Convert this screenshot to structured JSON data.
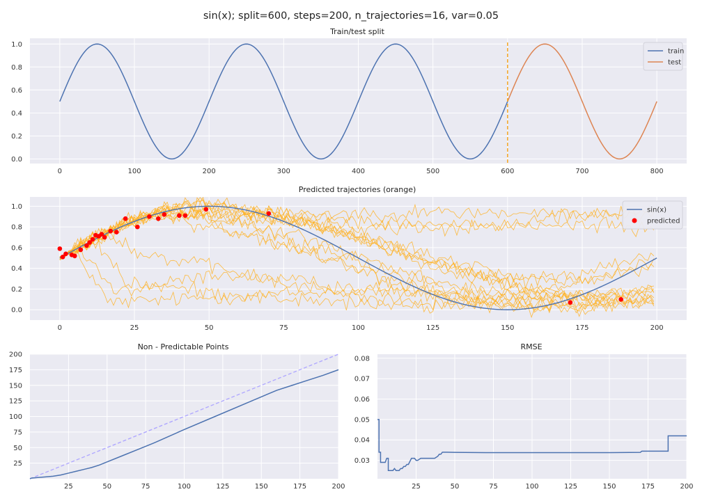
{
  "figure": {
    "suptitle": "sin(x); split=600, steps=200, n_trajectories=16, var=0.05",
    "colors": {
      "bg": "#eaeaf2",
      "grid": "#ffffff",
      "blue": "#4c72b0",
      "orange": "#dd8452",
      "traj": "#ffb01f",
      "pred": "#ff0000",
      "split": "#f5a623",
      "ref": "#b0a8ff"
    }
  },
  "chart_data": [
    {
      "id": "split",
      "type": "line",
      "title": "Train/test split",
      "xlim": [
        -40,
        840
      ],
      "ylim": [
        -0.04,
        1.05
      ],
      "xticks": [
        0,
        100,
        200,
        300,
        400,
        500,
        600,
        700,
        800
      ],
      "yticks": [
        0.0,
        0.2,
        0.4,
        0.6,
        0.8,
        1.0
      ],
      "ytick_labels": [
        "0.0",
        "0.2",
        "0.4",
        "0.6",
        "0.8",
        "1.0"
      ],
      "series": [
        {
          "name": "train",
          "x_range": [
            0,
            600
          ],
          "function": "0.5+0.5*sin(2*pi*x/200)"
        },
        {
          "name": "test",
          "x_range": [
            600,
            800
          ],
          "function": "0.5+0.5*sin(2*pi*x/200)"
        }
      ],
      "vline": {
        "x": 600
      },
      "legend": "top-right"
    },
    {
      "id": "traj",
      "type": "line",
      "title": "Predicted trajectories (orange)",
      "xlim": [
        -10,
        210
      ],
      "ylim": [
        -0.1,
        1.09
      ],
      "xticks": [
        0,
        25,
        50,
        75,
        100,
        125,
        150,
        175,
        200
      ],
      "yticks": [
        0.0,
        0.2,
        0.4,
        0.6,
        0.8,
        1.0
      ],
      "ytick_labels": [
        "0.0",
        "0.2",
        "0.4",
        "0.6",
        "0.8",
        "1.0"
      ],
      "series": [
        {
          "name": "sin(x)",
          "x_range": [
            0,
            200
          ],
          "function": "0.5+0.5*sin(2*pi*x/200)"
        }
      ],
      "trajectories": {
        "count": 16,
        "segments": [
          {
            "start": 4,
            "end": 184,
            "y": [
              0.05,
              0.18,
              0.12
            ]
          },
          {
            "start": 6,
            "end": 199,
            "y": [
              0.1,
              0.35,
              0.2,
              0.1,
              0.18
            ]
          },
          {
            "start": 10,
            "end": 199,
            "y": [
              0.3,
              0.18,
              0.08,
              0.03,
              0.1,
              0.2
            ]
          },
          {
            "start": 14,
            "end": 199,
            "y": [
              0.6,
              0.45,
              0.25,
              0.1,
              0.05,
              0.0,
              0.1
            ]
          },
          {
            "start": 22,
            "end": 199,
            "y": [
              0.9,
              0.95,
              0.93,
              0.94,
              0.93,
              0.92
            ]
          },
          {
            "start": 25,
            "end": 199,
            "y": [
              0.85,
              0.95,
              0.9,
              0.85,
              0.8,
              0.9,
              0.95
            ]
          },
          {
            "start": 28,
            "end": 199,
            "y": [
              0.88,
              0.9,
              0.86,
              0.8,
              0.78,
              0.8,
              0.82,
              0.78
            ]
          },
          {
            "start": 30,
            "end": 199,
            "y": [
              0.9,
              0.8,
              0.65,
              0.45,
              0.25,
              0.1,
              0.02,
              0.05,
              0.2
            ]
          },
          {
            "start": 35,
            "end": 199,
            "y": [
              0.95,
              0.9,
              0.75,
              0.55,
              0.35,
              0.2,
              0.15,
              0.3,
              0.45
            ]
          },
          {
            "start": 38,
            "end": 199,
            "y": [
              0.95,
              0.85,
              0.6,
              0.4,
              0.2,
              0.08,
              0.05,
              0.12
            ]
          },
          {
            "start": 40,
            "end": 199,
            "y": [
              0.9,
              0.7,
              0.45,
              0.2,
              0.05,
              0.02,
              0.1
            ]
          },
          {
            "start": 45,
            "end": 199,
            "y": [
              0.95,
              0.9,
              0.8,
              0.6,
              0.4,
              0.22,
              0.1,
              0.08
            ]
          },
          {
            "start": 48,
            "end": 199,
            "y": [
              0.98,
              0.92,
              0.7,
              0.45,
              0.3,
              0.35,
              0.52
            ]
          },
          {
            "start": 55,
            "end": 199,
            "y": [
              0.98,
              0.88,
              0.65,
              0.4,
              0.22,
              0.12,
              0.18
            ]
          },
          {
            "start": 60,
            "end": 199,
            "y": [
              0.95,
              0.85,
              0.65,
              0.42,
              0.2,
              0.1,
              0.05
            ]
          },
          {
            "start": 70,
            "end": 199,
            "y": [
              0.92,
              0.82,
              0.62,
              0.45,
              0.3,
              0.28,
              0.4
            ]
          }
        ]
      },
      "predicted": {
        "name": "predicted",
        "x": [
          0,
          1,
          2,
          4,
          5,
          7,
          9,
          10,
          11,
          12,
          13,
          14,
          15,
          17,
          19,
          22,
          26,
          30,
          33,
          35,
          40,
          42,
          49,
          70,
          171,
          188
        ],
        "y": [
          0.59,
          0.51,
          0.54,
          0.53,
          0.52,
          0.58,
          0.62,
          0.65,
          0.68,
          0.72,
          0.71,
          0.73,
          0.7,
          0.76,
          0.75,
          0.88,
          0.8,
          0.9,
          0.88,
          0.92,
          0.91,
          0.91,
          0.97,
          0.93,
          0.07,
          0.1
        ]
      },
      "legend": "top-right"
    },
    {
      "id": "npp",
      "type": "line",
      "title": "Non - Predictable Points",
      "xlim": [
        0,
        200
      ],
      "ylim": [
        0,
        200
      ],
      "xticks": [
        25,
        50,
        75,
        100,
        125,
        150,
        175,
        200
      ],
      "yticks": [
        25,
        50,
        75,
        100,
        125,
        150,
        175,
        200
      ],
      "series": [
        {
          "name": "",
          "x": [
            0,
            1,
            5,
            10,
            15,
            20,
            25,
            30,
            35,
            40,
            45,
            50,
            60,
            70,
            80,
            100,
            120,
            140,
            160,
            170,
            180,
            190,
            200
          ],
          "y": [
            0,
            1,
            2,
            3,
            4,
            6,
            9,
            12,
            15,
            18,
            22,
            27,
            37,
            47,
            57,
            79,
            100,
            121,
            142,
            150,
            158,
            166,
            175
          ]
        }
      ],
      "reference": {
        "x": [
          0,
          200
        ],
        "y": [
          0,
          200
        ]
      }
    },
    {
      "id": "rmse",
      "type": "line",
      "title": "RMSE",
      "xlim": [
        0,
        200
      ],
      "ylim": [
        0.021,
        0.082
      ],
      "xticks": [
        25,
        50,
        75,
        100,
        125,
        150,
        175,
        200
      ],
      "yticks": [
        0.03,
        0.04,
        0.05,
        0.06,
        0.07,
        0.08
      ],
      "ytick_labels": [
        "0.03",
        "0.04",
        "0.05",
        "0.06",
        "0.07",
        "0.08"
      ],
      "series": [
        {
          "name": "",
          "x": [
            0,
            1,
            2,
            3,
            4,
            5,
            6,
            7,
            8,
            9,
            10,
            11,
            12,
            13,
            14,
            15,
            16,
            17,
            18,
            19,
            20,
            22,
            24,
            25,
            26,
            28,
            30,
            32,
            35,
            37,
            39,
            40,
            41,
            42,
            45,
            50,
            70,
            100,
            130,
            150,
            170,
            171,
            180,
            187,
            188,
            190,
            200
          ],
          "y": [
            0.05,
            0.034,
            0.029,
            0.029,
            0.029,
            0.029,
            0.031,
            0.025,
            0.025,
            0.025,
            0.025,
            0.026,
            0.025,
            0.025,
            0.025,
            0.026,
            0.026,
            0.027,
            0.027,
            0.028,
            0.028,
            0.031,
            0.031,
            0.03,
            0.03,
            0.031,
            0.031,
            0.031,
            0.031,
            0.031,
            0.032,
            0.033,
            0.033,
            0.034,
            0.034,
            0.0339,
            0.0338,
            0.0338,
            0.0338,
            0.0338,
            0.0339,
            0.0345,
            0.0345,
            0.0345,
            0.042,
            0.042,
            0.042
          ]
        }
      ]
    }
  ]
}
